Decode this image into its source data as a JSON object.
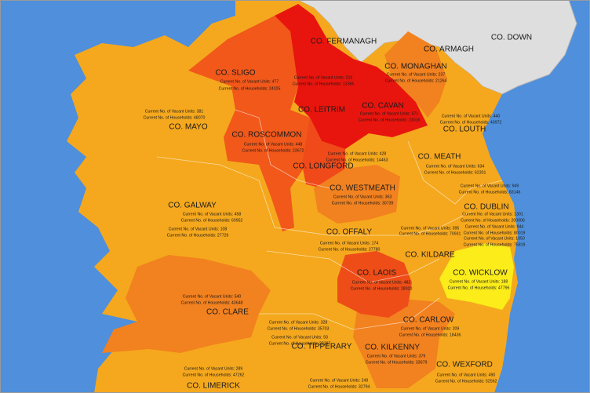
{
  "regions": [
    {
      "label": "CO. FERMANAGH",
      "stats": []
    },
    {
      "label": "CO. ARMAGH",
      "stats": []
    },
    {
      "label": "CO. DOWN",
      "stats": []
    },
    {
      "label": "CO. SLIGO",
      "stats": [
        "Current No. of Vacant Units: 477",
        "Current No. of Households: 24025"
      ]
    },
    {
      "label": "CO. LEITRIM",
      "stats": [
        "Current No. of Vacant Units: 210",
        "Current No. of Households: 12365"
      ]
    },
    {
      "label": "CO. MONAGHAN",
      "stats": [
        "Current No. of Vacant Units: 237",
        "Current No. of Households: 21264"
      ]
    },
    {
      "label": "CO. CAVAN",
      "stats": [
        "Current No. of Vacant Units: 671",
        "Current No. of Households: 23016"
      ]
    },
    {
      "label": "CO. MAYO",
      "stats": [
        "Current No. of Vacant Units: 381",
        "Current No. of Households: 48070"
      ]
    },
    {
      "label": "CO. ROSCOMMON",
      "stats": [
        "Current No. of Vacant Units: 448",
        "Current No. of Households: 23672"
      ]
    },
    {
      "label": "CO. LOUTH",
      "stats": [
        "Current No. of Vacant Units: 440",
        "Current No. of Households: 43972"
      ]
    },
    {
      "label": "CO. LONGFORD",
      "stats": [
        "Current No. of Vacant Units: 428",
        "Current No. of Households: 14463"
      ]
    },
    {
      "label": "CO. MEATH",
      "stats": [
        "Current No. of Vacant Units: 634",
        "Current No. of Households: 62301"
      ]
    },
    {
      "label": "CO. WESTMEATH",
      "stats": [
        "Current No. of Vacant Units: 363",
        "Current No. of Households: 30739"
      ]
    },
    {
      "label": "CO. GALWAY",
      "stats": [
        "Current No. of Vacant Units: 458",
        "Current No. of Households: 60952",
        "Current No. of Vacant Units: 108",
        "Current No. of Households: 27726"
      ]
    },
    {
      "label": "CO. DUBLIN",
      "stats": [
        "Current No. of Vacant Units: 949",
        "Current No. of Households: 83146",
        "Current No. of Vacant Units: 1301",
        "Current No. of Households: 200006",
        "Current No. of Vacant Units: 944",
        "Current No. of Households: 80019",
        "Current No. of Vacant Units: 1050",
        "Current No. of Households: 75819",
        "Current No. of Vacant Units: 395",
        "Current No. of Households: 70931"
      ]
    },
    {
      "label": "CO. OFFALY",
      "stats": [
        "Current No. of Vacant Units: 174",
        "Current No. of Households: 27780"
      ]
    },
    {
      "label": "CO. KILDARE",
      "stats": []
    },
    {
      "label": "CO. WICKLOW",
      "stats": [
        "Current No. of Vacant Units: 188",
        "Current No. of Households: 47796"
      ]
    },
    {
      "label": "CO. LAOIS",
      "stats": [
        "Current No. of Vacant Units: 482",
        "Current No. of Households: 28020"
      ]
    },
    {
      "label": "CO. CLARE",
      "stats": [
        "Current No. of Vacant Units: 540",
        "Current No. of Households: 43648"
      ]
    },
    {
      "label": "CO. CARLOW",
      "stats": [
        "Current No. of Vacant Units: 209",
        "Current No. of Households: 18436"
      ]
    },
    {
      "label": "CO. TIPPERARY",
      "stats": [
        "Current No. of Vacant Units: 328",
        "Current No. of Households: 35703",
        "Current No. of Vacant Units: 93",
        "Current No. of Households: 22387"
      ]
    },
    {
      "label": "CO. KILKENNY",
      "stats": [
        "Current No. of Vacant Units: 379",
        "Current No. of Households: 33679"
      ]
    },
    {
      "label": "CO. WEXFORD",
      "stats": [
        "Current No. of Vacant Units: 490",
        "Current No. of Households: 52562"
      ]
    },
    {
      "label": "CO. LIMERICK",
      "stats": [
        "Current No. of Vacant Units: 289",
        "Current No. of Households: 47262"
      ]
    },
    {
      "label": null,
      "stats": [
        "Current No. of Vacant Units: 249",
        "Current No. of Households: 32794"
      ]
    }
  ]
}
